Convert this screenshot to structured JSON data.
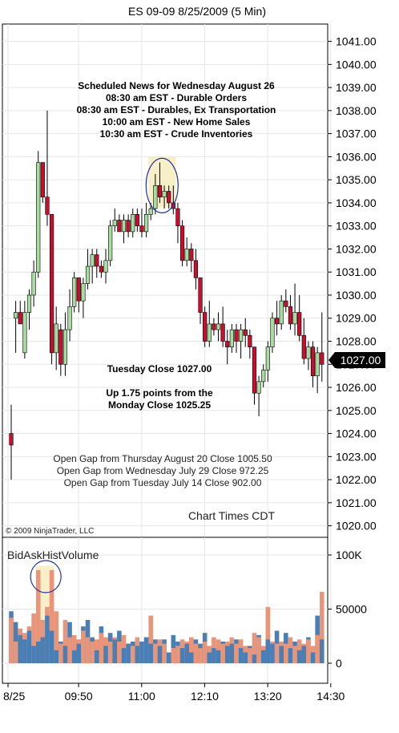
{
  "chart_data": [
    {
      "type": "candlestick",
      "title": "ES 09-09  8/25/2009 (5 Min)",
      "y_ticks": [
        "1041.00",
        "1040.00",
        "1039.00",
        "1038.00",
        "1037.00",
        "1036.00",
        "1035.00",
        "1034.00",
        "1033.00",
        "1032.00",
        "1031.00",
        "1030.00",
        "1029.00",
        "1028.00",
        "1027.00",
        "1026.00",
        "1025.00",
        "1024.00",
        "1023.00",
        "1022.00",
        "1021.00",
        "1020.00"
      ],
      "ylim": [
        1019.5,
        1041.75
      ],
      "x_ticks": [
        "8/25",
        "09:50",
        "11:00",
        "12:10",
        "13:20",
        "14:30"
      ],
      "last_price": "1027.00",
      "news": {
        "title": "Scheduled News for Wednesday August 26",
        "items": [
          "08:30 am EST - Durable Orders",
          "08:30 am EST - Durables, Ex Transportation",
          "10:00 am EST - New Home Sales",
          "10:30 am EST - Crude Inventories"
        ]
      },
      "close_note": [
        "Tuesday Close 1027.00",
        "Up 1.75 points from the",
        "Monday Close 1025.25"
      ],
      "gaps": [
        "Open Gap from Thursday August 20 Close 1005.50",
        "Open Gap from Wednesday July 29 Close 972.25",
        "Open Gap from Tuesday July 14 Close 902.00"
      ],
      "chart_times": "Chart Times CDT",
      "copyright": "© 2009 NinjaTrader, LLC",
      "colors": {
        "up": "#a8dca0",
        "down": "#c8102e",
        "highlight_fill": "#f7efc8",
        "ellipse": "#2233aa"
      },
      "candles": [
        [
          1024.0,
          1025.25,
          1022.0,
          1023.5
        ],
        [
          1029.0,
          1029.75,
          1027.5,
          1029.25
        ],
        [
          1029.25,
          1029.75,
          1028.75,
          1028.75
        ],
        [
          1027.5,
          1029.75,
          1027.25,
          1029.25
        ],
        [
          1029.25,
          1030.25,
          1028.5,
          1030.0
        ],
        [
          1030.0,
          1031.5,
          1029.5,
          1031.0
        ],
        [
          1031.0,
          1036.25,
          1030.75,
          1035.75
        ],
        [
          1035.75,
          1035.75,
          1034.0,
          1034.25
        ],
        [
          1034.25,
          1038.0,
          1033.0,
          1033.5
        ],
        [
          1033.5,
          1033.5,
          1027.0,
          1027.5
        ],
        [
          1027.5,
          1029.5,
          1026.75,
          1028.75
        ],
        [
          1028.5,
          1028.75,
          1026.5,
          1027.0
        ],
        [
          1027.0,
          1029.25,
          1026.5,
          1028.5
        ],
        [
          1028.5,
          1030.25,
          1028.0,
          1029.5
        ],
        [
          1029.5,
          1031.0,
          1029.25,
          1030.75
        ],
        [
          1030.75,
          1030.75,
          1029.25,
          1029.75
        ],
        [
          1029.75,
          1030.75,
          1029.0,
          1030.5
        ],
        [
          1030.5,
          1032.0,
          1030.25,
          1031.25
        ],
        [
          1031.25,
          1032.0,
          1030.5,
          1031.75
        ],
        [
          1031.75,
          1032.0,
          1030.75,
          1031.25
        ],
        [
          1031.25,
          1031.5,
          1030.75,
          1031.0
        ],
        [
          1031.0,
          1032.0,
          1030.5,
          1031.5
        ],
        [
          1031.5,
          1033.25,
          1031.25,
          1033.0
        ],
        [
          1033.0,
          1033.75,
          1032.75,
          1033.25
        ],
        [
          1033.25,
          1033.5,
          1032.75,
          1032.75
        ],
        [
          1032.75,
          1033.5,
          1032.25,
          1033.25
        ],
        [
          1033.25,
          1033.5,
          1032.5,
          1032.75
        ],
        [
          1032.75,
          1033.75,
          1032.5,
          1033.5
        ],
        [
          1033.5,
          1033.75,
          1032.75,
          1033.0
        ],
        [
          1033.0,
          1033.75,
          1032.5,
          1032.75
        ],
        [
          1032.75,
          1034.0,
          1032.5,
          1033.5
        ],
        [
          1033.5,
          1034.0,
          1033.25,
          1033.75
        ],
        [
          1033.75,
          1035.25,
          1033.5,
          1034.75
        ],
        [
          1034.75,
          1035.75,
          1034.0,
          1034.25
        ],
        [
          1034.25,
          1034.75,
          1033.75,
          1034.5
        ],
        [
          1034.5,
          1034.75,
          1033.75,
          1034.0
        ],
        [
          1034.0,
          1034.75,
          1033.5,
          1033.75
        ],
        [
          1033.75,
          1034.0,
          1032.25,
          1033.0
        ],
        [
          1033.0,
          1033.25,
          1031.25,
          1031.5
        ],
        [
          1031.5,
          1032.5,
          1031.25,
          1032.0
        ],
        [
          1032.0,
          1032.25,
          1031.0,
          1031.5
        ],
        [
          1031.5,
          1032.0,
          1030.25,
          1030.75
        ],
        [
          1030.75,
          1030.75,
          1028.75,
          1029.25
        ],
        [
          1029.25,
          1029.5,
          1027.75,
          1028.0
        ],
        [
          1028.0,
          1029.75,
          1027.75,
          1028.75
        ],
        [
          1028.75,
          1029.0,
          1028.25,
          1028.5
        ],
        [
          1028.5,
          1029.25,
          1028.0,
          1028.75
        ],
        [
          1028.75,
          1029.5,
          1027.75,
          1028.0
        ],
        [
          1028.0,
          1028.5,
          1027.0,
          1027.75
        ],
        [
          1027.75,
          1028.75,
          1027.5,
          1028.5
        ],
        [
          1028.5,
          1028.75,
          1027.5,
          1028.0
        ],
        [
          1028.0,
          1028.75,
          1027.25,
          1028.5
        ],
        [
          1028.5,
          1029.0,
          1027.75,
          1028.25
        ],
        [
          1028.25,
          1028.5,
          1027.25,
          1027.75
        ],
        [
          1027.75,
          1027.75,
          1025.25,
          1025.75
        ],
        [
          1025.75,
          1026.5,
          1024.75,
          1026.25
        ],
        [
          1026.25,
          1027.0,
          1026.0,
          1026.75
        ],
        [
          1026.75,
          1028.0,
          1026.25,
          1027.75
        ],
        [
          1027.75,
          1029.25,
          1027.5,
          1029.0
        ],
        [
          1029.0,
          1029.75,
          1028.25,
          1028.75
        ],
        [
          1028.75,
          1030.0,
          1028.5,
          1029.75
        ],
        [
          1029.75,
          1030.25,
          1029.25,
          1029.5
        ],
        [
          1029.5,
          1030.0,
          1028.5,
          1028.75
        ],
        [
          1028.75,
          1030.5,
          1028.25,
          1029.25
        ],
        [
          1029.25,
          1030.0,
          1028.0,
          1028.25
        ],
        [
          1028.25,
          1029.0,
          1027.0,
          1027.25
        ],
        [
          1027.25,
          1028.0,
          1026.75,
          1027.75
        ],
        [
          1027.75,
          1028.0,
          1026.0,
          1026.5
        ],
        [
          1026.5,
          1027.75,
          1025.75,
          1027.5
        ],
        [
          1027.5,
          1029.25,
          1026.25,
          1027.0
        ]
      ]
    },
    {
      "type": "bar",
      "title": "BidAskHistVolume",
      "y_ticks": [
        "100K",
        "50000",
        "0"
      ],
      "ylim": [
        0,
        110000
      ],
      "colors": {
        "bid": "#4a7fb5",
        "ask": "#e8957a",
        "highlight_fill": "#f7efc8",
        "ellipse": "#2233aa"
      },
      "series": [
        {
          "name": "bid",
          "values": [
            48000,
            38000,
            26000,
            22000,
            30000,
            16000,
            20000,
            24000,
            44000,
            30000,
            12000,
            20000,
            16000,
            38000,
            12000,
            18000,
            34000,
            40000,
            24000,
            12000,
            34000,
            16000,
            28000,
            22000,
            30000,
            14000,
            18000,
            20000,
            16000,
            20000,
            24000,
            18000,
            22000,
            16000,
            22000,
            10000,
            26000,
            20000,
            14000,
            18000,
            10000,
            22000,
            18000,
            28000,
            10000,
            14000,
            12000,
            20000,
            16000,
            18000,
            22000,
            14000,
            10000,
            16000,
            8000,
            26000,
            12000,
            22000,
            18000,
            30000,
            16000,
            28000,
            14000,
            20000,
            12000,
            16000,
            24000,
            10000,
            44000,
            22000
          ]
        },
        {
          "name": "ask",
          "values": [
            42000,
            20000,
            32000,
            28000,
            34000,
            46000,
            86000,
            40000,
            52000,
            86000,
            48000,
            18000,
            40000,
            24000,
            26000,
            22000,
            30000,
            24000,
            20000,
            22000,
            28000,
            24000,
            20000,
            24000,
            20000,
            26000,
            18000,
            16000,
            24000,
            20000,
            24000,
            44000,
            18000,
            22000,
            18000,
            10000,
            14000,
            16000,
            22000,
            20000,
            24000,
            18000,
            14000,
            20000,
            16000,
            24000,
            22000,
            18000,
            20000,
            24000,
            18000,
            22000,
            16000,
            14000,
            28000,
            24000,
            16000,
            52000,
            20000,
            18000,
            20000,
            18000,
            24000,
            16000,
            22000,
            18000,
            22000,
            16000,
            26000,
            66000
          ]
        }
      ]
    }
  ]
}
